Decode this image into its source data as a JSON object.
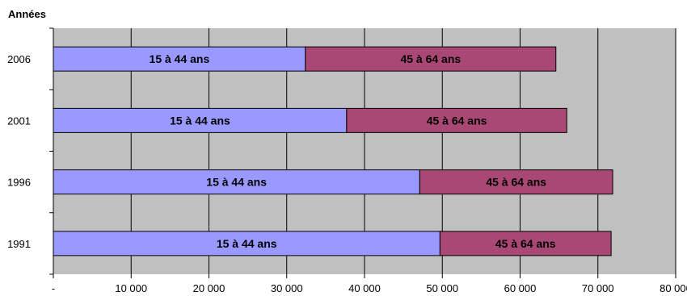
{
  "chart_data": {
    "type": "bar",
    "orientation": "horizontal",
    "stacked": true,
    "ylabel": "Années",
    "xlabel": "",
    "categories": [
      "2006",
      "2001",
      "1996",
      "1991"
    ],
    "series": [
      {
        "label": "15 à 44 ans",
        "color": "#9999ff",
        "values": [
          32400,
          37700,
          47100,
          49700
        ]
      },
      {
        "label": "45 à 64 ans",
        "color": "#a94875",
        "values": [
          32200,
          28300,
          24800,
          22000
        ]
      }
    ],
    "xlim": [
      0,
      80000
    ],
    "x_ticks": [
      "-",
      "10 000",
      "20 000",
      "30 000",
      "40 000",
      "50 000",
      "60 000",
      "70 000",
      "80 000"
    ],
    "grid": true,
    "plot_background": "#c0c0c0"
  }
}
